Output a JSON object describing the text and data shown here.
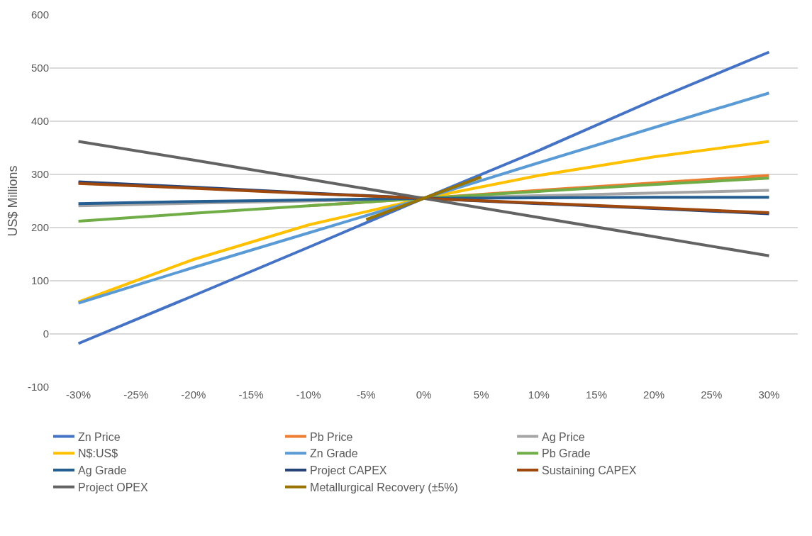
{
  "chart_data": {
    "type": "line",
    "ylabel": "US$ Millions",
    "x": [
      -30,
      -20,
      -10,
      0,
      10,
      20,
      30
    ],
    "xlim": [
      -32.5,
      32.5
    ],
    "xticks": [
      {
        "value": -30,
        "label": "-30%"
      },
      {
        "value": -25,
        "label": "-25%"
      },
      {
        "value": -20,
        "label": "-20%"
      },
      {
        "value": -15,
        "label": "-15%"
      },
      {
        "value": -10,
        "label": "-10%"
      },
      {
        "value": -5,
        "label": "-5%"
      },
      {
        "value": 0,
        "label": "0%"
      },
      {
        "value": 5,
        "label": "5%"
      },
      {
        "value": 10,
        "label": "10%"
      },
      {
        "value": 15,
        "label": "15%"
      },
      {
        "value": 20,
        "label": "20%"
      },
      {
        "value": 25,
        "label": "25%"
      },
      {
        "value": 30,
        "label": "30%"
      }
    ],
    "ylim": [
      -100,
      600
    ],
    "yticks": [
      -100,
      0,
      100,
      200,
      300,
      400,
      500,
      600
    ],
    "grid": "y",
    "legend": "bottom",
    "marker": "none",
    "line_style": "solid",
    "series": [
      {
        "name": "Zn Price",
        "color": "#4472c4",
        "values": [
          -18,
          72,
          163,
          255,
          345,
          440,
          530
        ]
      },
      {
        "name": "Pb Price",
        "color": "#ed7d31",
        "values": [
          null,
          null,
          241,
          255,
          270,
          284,
          298
        ]
      },
      {
        "name": "Ag Price",
        "color": "#a5a5a5",
        "values": [
          241,
          246,
          250,
          255,
          260,
          265,
          270
        ]
      },
      {
        "name": "N$:US$",
        "color": "#ffc000",
        "values": [
          60,
          140,
          205,
          255,
          298,
          333,
          362
        ]
      },
      {
        "name": "Zn Grade",
        "color": "#5b9bd5",
        "values": [
          58,
          125,
          190,
          255,
          322,
          388,
          453
        ]
      },
      {
        "name": "Pb Grade",
        "color": "#70ad47",
        "values": [
          212,
          227,
          241,
          255,
          268,
          281,
          293
        ]
      },
      {
        "name": "Ag Grade",
        "color": "#255e91",
        "values": [
          245,
          249,
          252,
          255,
          256,
          257,
          257
        ]
      },
      {
        "name": "Project CAPEX",
        "color": "#264478",
        "values": [
          286,
          276,
          265,
          255,
          245,
          236,
          226
        ]
      },
      {
        "name": "Sustaining CAPEX",
        "color": "#9e480e",
        "values": [
          283,
          274,
          264,
          255,
          246,
          237,
          228
        ]
      },
      {
        "name": "Project OPEX",
        "color": "#636363",
        "values": [
          362,
          327,
          291,
          255,
          219,
          183,
          147
        ]
      },
      {
        "name": "Metallurgical Recovery (±5%)",
        "color": "#997300",
        "x": [
          -5,
          0,
          5
        ],
        "values": [
          215,
          255,
          295
        ]
      }
    ]
  }
}
